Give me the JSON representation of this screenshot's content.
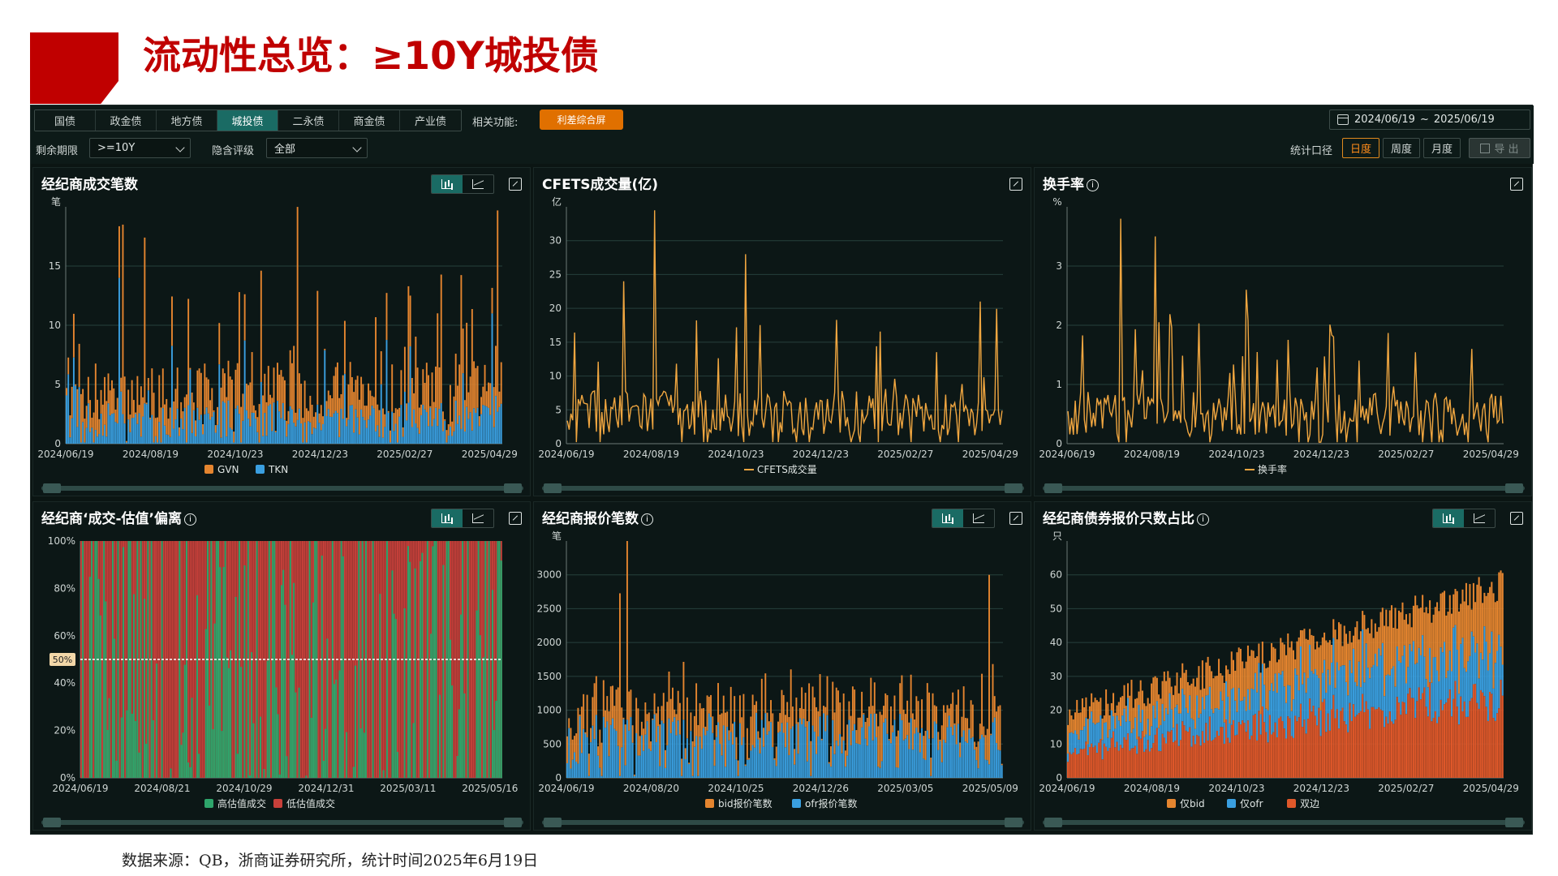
{
  "slide": {
    "title": "流动性总览：≥10Y城投债",
    "footnote": "数据来源：QB，浙商证券研究所，统计时间2025年6月19日"
  },
  "toolbar": {
    "tabs": [
      {
        "label": "国债",
        "active": false
      },
      {
        "label": "政金债",
        "active": false
      },
      {
        "label": "地方债",
        "active": false
      },
      {
        "label": "城投债",
        "active": true
      },
      {
        "label": "二永债",
        "active": false
      },
      {
        "label": "商金债",
        "active": false
      },
      {
        "label": "产业债",
        "active": false
      }
    ],
    "related_label": "相关功能:",
    "related_button": "利差综合屏",
    "term_label": "剩余期限",
    "term_value": ">=10Y",
    "rating_label": "隐含评级",
    "rating_value": "全部",
    "date_start": "2024/06/19",
    "date_sep": "~",
    "date_end": "2025/06/19",
    "stat_label": "统计口径",
    "periods": [
      {
        "label": "日度",
        "active": true
      },
      {
        "label": "周度",
        "active": false
      },
      {
        "label": "月度",
        "active": false
      }
    ],
    "export_label": "导 出"
  },
  "colors": {
    "gvn": "#e5852f",
    "tkn": "#3a9fe0",
    "line": "#f0a640",
    "high": "#2ea56b",
    "low": "#c7403a",
    "bid": "#e5852f",
    "ofr": "#3a9fe0",
    "both": "#e0582a",
    "ref": "#ffffff"
  },
  "chart_data": [
    {
      "id": "broker-trades",
      "type": "bar",
      "stacked": true,
      "title": "经纪商成交笔数",
      "unit": "笔",
      "ylim": [
        0,
        20
      ],
      "yticks": [
        "0",
        "5",
        "10",
        "15"
      ],
      "x_range": [
        "2024/06/19",
        "2025/06/19"
      ],
      "xticks": [
        "2024/06/19",
        "2024/08/19",
        "2024/10/23",
        "2024/12/23",
        "2025/02/27",
        "2025/04/29"
      ],
      "series": [
        {
          "name": "GVN",
          "color_key": "gvn",
          "mean": 2.5,
          "peak": 11,
          "spikes": [
            [
              0.13,
              16
            ],
            [
              0.18,
              14
            ],
            [
              0.53,
              18
            ],
            [
              0.91,
              13
            ],
            [
              0.99,
              17
            ]
          ]
        },
        {
          "name": "TKN",
          "color_key": "tkn",
          "mean": 2.0,
          "peak": 9,
          "spikes": [
            [
              0.12,
              14
            ],
            [
              0.98,
              11
            ]
          ]
        }
      ],
      "legend": "bottom"
    },
    {
      "id": "cfets-volume",
      "type": "line",
      "title": "CFETS成交量(亿)",
      "unit": "亿",
      "ylim": [
        0,
        35
      ],
      "yticks": [
        "0",
        "5",
        "10",
        "15",
        "20",
        "25",
        "30"
      ],
      "x_range": [
        "2024/06/19",
        "2025/06/19"
      ],
      "xticks": [
        "2024/06/19",
        "2024/08/19",
        "2024/10/23",
        "2024/12/23",
        "2025/02/27",
        "2025/04/29"
      ],
      "series": [
        {
          "name": "CFETS成交量",
          "color_key": "line",
          "mean": 4.5,
          "peak": 20,
          "spikes": [
            [
              0.13,
              24
            ],
            [
              0.2,
              34.5
            ],
            [
              0.41,
              28
            ],
            [
              0.95,
              21
            ]
          ]
        }
      ],
      "legend": "bottom"
    },
    {
      "id": "turnover",
      "type": "line",
      "title": "换手率",
      "unit": "%",
      "ylim": [
        0,
        4
      ],
      "yticks": [
        "0",
        "1",
        "2",
        "3"
      ],
      "x_range": [
        "2024/06/19",
        "2025/06/19"
      ],
      "xticks": [
        "2024/06/19",
        "2024/08/19",
        "2024/10/23",
        "2024/12/23",
        "2025/02/27",
        "2025/04/29"
      ],
      "series": [
        {
          "name": "换手率",
          "color_key": "line",
          "mean": 0.5,
          "peak": 2.2,
          "spikes": [
            [
              0.12,
              3.8
            ],
            [
              0.2,
              3.5
            ],
            [
              0.41,
              2.6
            ],
            [
              0.93,
              1.6
            ]
          ]
        }
      ],
      "legend": "bottom"
    },
    {
      "id": "deviation",
      "type": "bar",
      "stacked": true,
      "percent": true,
      "title": "经纪商‘成交-估值’偏离",
      "ylim": [
        0,
        100
      ],
      "yticks": [
        "0%",
        "20%",
        "40%",
        "60%",
        "80%",
        "100%"
      ],
      "x_range": [
        "2024/06/19",
        "2025/06/19"
      ],
      "xticks": [
        "2024/06/19",
        "2024/08/21",
        "2024/10/29",
        "2024/12/31",
        "2025/03/11",
        "2025/05/16"
      ],
      "reference_line": {
        "value": 50,
        "label": "50%"
      },
      "series": [
        {
          "name": "高估值成交",
          "color_key": "high"
        },
        {
          "name": "低估值成交",
          "color_key": "low"
        }
      ],
      "legend": "bottom"
    },
    {
      "id": "quotes",
      "type": "bar",
      "stacked": true,
      "title": "经纪商报价笔数",
      "unit": "笔",
      "ylim": [
        0,
        3500
      ],
      "yticks": [
        "0",
        "500",
        "1000",
        "1500",
        "2000",
        "2500",
        "3000"
      ],
      "x_range": [
        "2024/06/19",
        "2025/06/19"
      ],
      "xticks": [
        "2024/06/19",
        "2024/08/20",
        "2024/10/25",
        "2024/12/26",
        "2025/03/05",
        "2025/05/09"
      ],
      "series": [
        {
          "name": "bid报价笔数",
          "color_key": "bid",
          "mean": 400,
          "peak": 900,
          "spikes": [
            [
              0.12,
              2700
            ],
            [
              0.14,
              3100
            ],
            [
              0.97,
              2800
            ]
          ]
        },
        {
          "name": "ofr报价笔数",
          "color_key": "ofr",
          "mean": 550,
          "peak": 900
        }
      ],
      "legend": "bottom"
    },
    {
      "id": "quote-share",
      "type": "bar",
      "stacked": true,
      "title": "经纪商债券报价只数占比",
      "unit": "只",
      "ylim": [
        0,
        70
      ],
      "yticks": [
        "0",
        "10",
        "20",
        "30",
        "40",
        "50",
        "60"
      ],
      "x_range": [
        "2024/06/19",
        "2025/06/19"
      ],
      "xticks": [
        "2024/06/19",
        "2024/08/19",
        "2024/10/23",
        "2024/12/23",
        "2025/02/27",
        "2025/04/29"
      ],
      "series": [
        {
          "name": "仅bid",
          "color_key": "bid"
        },
        {
          "name": "仅ofr",
          "color_key": "ofr"
        },
        {
          "name": "双边",
          "color_key": "both"
        }
      ],
      "legend": "bottom"
    }
  ]
}
